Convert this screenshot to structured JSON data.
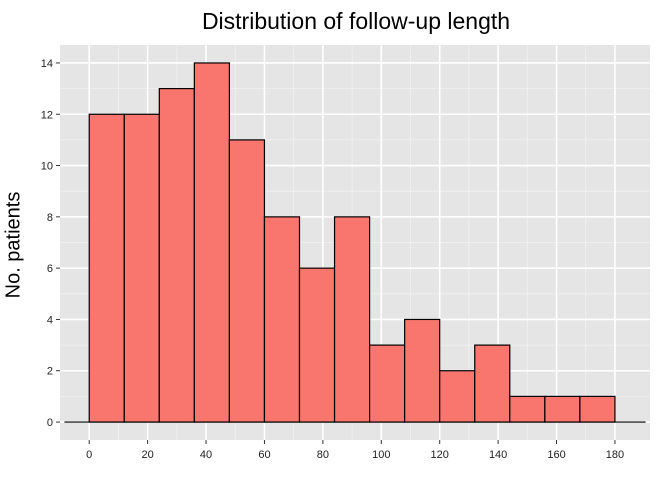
{
  "chart_data": {
    "type": "bar",
    "title": "Distribution of follow-up length",
    "xlabel": "",
    "ylabel": "No. patients",
    "xlim": [
      -10,
      192
    ],
    "ylim": [
      0,
      14
    ],
    "xticks": [
      0,
      20,
      40,
      60,
      80,
      100,
      120,
      140,
      160,
      180
    ],
    "yticks": [
      0,
      2,
      4,
      6,
      8,
      10,
      12,
      14
    ],
    "bin_width": 12,
    "bins": [
      {
        "start": 0,
        "end": 12,
        "value": 12
      },
      {
        "start": 12,
        "end": 24,
        "value": 12
      },
      {
        "start": 24,
        "end": 36,
        "value": 13
      },
      {
        "start": 36,
        "end": 48,
        "value": 14
      },
      {
        "start": 48,
        "end": 60,
        "value": 11
      },
      {
        "start": 60,
        "end": 72,
        "value": 8
      },
      {
        "start": 72,
        "end": 84,
        "value": 6
      },
      {
        "start": 84,
        "end": 96,
        "value": 8
      },
      {
        "start": 96,
        "end": 108,
        "value": 3
      },
      {
        "start": 108,
        "end": 120,
        "value": 4
      },
      {
        "start": 120,
        "end": 132,
        "value": 2
      },
      {
        "start": 132,
        "end": 144,
        "value": 3
      },
      {
        "start": 144,
        "end": 156,
        "value": 1
      },
      {
        "start": 156,
        "end": 168,
        "value": 1
      },
      {
        "start": 168,
        "end": 180,
        "value": 1
      }
    ],
    "grid": true,
    "colors": {
      "bar_fill": "#F8766D",
      "bar_stroke": "#000000",
      "panel_background": "#E5E5E5",
      "grid_major": "#FFFFFF",
      "grid_minor": "#F2F2F2"
    }
  }
}
